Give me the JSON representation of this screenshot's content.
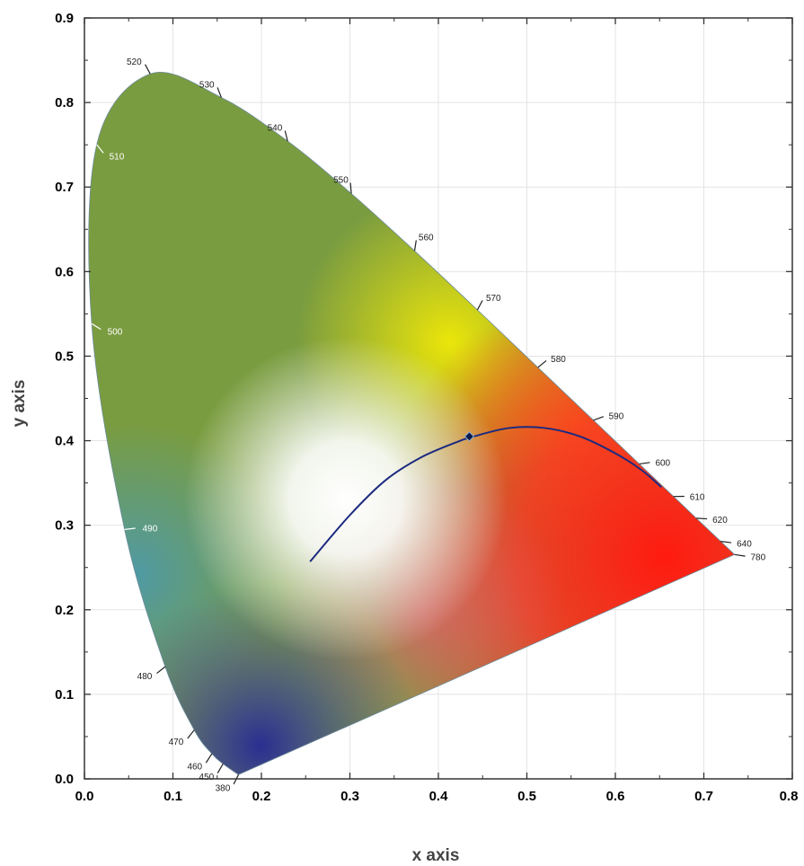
{
  "chart_data": {
    "type": "scatter",
    "title": "",
    "xlabel": "x  axis",
    "ylabel": "y  axis",
    "xlim": [
      0.0,
      0.8
    ],
    "ylim": [
      0.0,
      0.9
    ],
    "x_ticks": [
      "0.0",
      "0.1",
      "0.2",
      "0.3",
      "0.4",
      "0.5",
      "0.6",
      "0.7",
      "0.8"
    ],
    "y_ticks": [
      "0.0",
      "0.1",
      "0.2",
      "0.3",
      "0.4",
      "0.5",
      "0.6",
      "0.7",
      "0.8",
      "0.9"
    ],
    "grid": true,
    "locus_labels": [
      {
        "nm": "380",
        "x": 0.1741,
        "y": 0.005
      },
      {
        "nm": "450",
        "x": 0.1566,
        "y": 0.0177
      },
      {
        "nm": "460",
        "x": 0.144,
        "y": 0.0297
      },
      {
        "nm": "470",
        "x": 0.1241,
        "y": 0.0578
      },
      {
        "nm": "480",
        "x": 0.0913,
        "y": 0.1327
      },
      {
        "nm": "490",
        "x": 0.0454,
        "y": 0.295
      },
      {
        "nm": "500",
        "x": 0.0082,
        "y": 0.5384
      },
      {
        "nm": "510",
        "x": 0.0139,
        "y": 0.7502
      },
      {
        "nm": "520",
        "x": 0.0743,
        "y": 0.8338
      },
      {
        "nm": "530",
        "x": 0.1547,
        "y": 0.8059
      },
      {
        "nm": "540",
        "x": 0.2296,
        "y": 0.7543
      },
      {
        "nm": "550",
        "x": 0.3016,
        "y": 0.6923
      },
      {
        "nm": "560",
        "x": 0.3731,
        "y": 0.6245
      },
      {
        "nm": "570",
        "x": 0.4441,
        "y": 0.5547
      },
      {
        "nm": "580",
        "x": 0.5125,
        "y": 0.4866
      },
      {
        "nm": "590",
        "x": 0.5752,
        "y": 0.4242
      },
      {
        "nm": "600",
        "x": 0.627,
        "y": 0.3725
      },
      {
        "nm": "610",
        "x": 0.6658,
        "y": 0.334
      },
      {
        "nm": "620",
        "x": 0.6915,
        "y": 0.3083
      },
      {
        "nm": "640",
        "x": 0.719,
        "y": 0.2809
      },
      {
        "nm": "780",
        "x": 0.7347,
        "y": 0.2653
      }
    ],
    "series": [
      {
        "type": "line",
        "color": "#1c2a80",
        "points": [
          [
            0.255,
            0.257
          ],
          [
            0.3,
            0.312
          ],
          [
            0.34,
            0.353
          ],
          [
            0.38,
            0.38
          ],
          [
            0.42,
            0.398
          ],
          [
            0.44,
            0.405
          ],
          [
            0.48,
            0.415
          ],
          [
            0.52,
            0.415
          ],
          [
            0.56,
            0.405
          ],
          [
            0.6,
            0.385
          ],
          [
            0.63,
            0.365
          ],
          [
            0.652,
            0.345
          ]
        ]
      },
      {
        "type": "scatter",
        "marker": "diamond",
        "color": "#0a1a4a",
        "points": [
          [
            0.435,
            0.405
          ]
        ]
      }
    ]
  }
}
